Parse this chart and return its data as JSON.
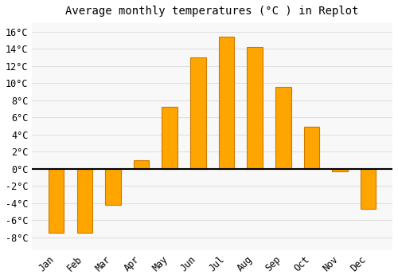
{
  "title": "Average monthly temperatures (°C ) in Replot",
  "months": [
    "Jan",
    "Feb",
    "Mar",
    "Apr",
    "May",
    "Jun",
    "Jul",
    "Aug",
    "Sep",
    "Oct",
    "Nov",
    "Dec"
  ],
  "temperatures": [
    -7.5,
    -7.5,
    -4.2,
    1.0,
    7.2,
    13.0,
    15.4,
    14.2,
    9.6,
    4.9,
    -0.3,
    -4.7
  ],
  "bar_color": "#FFA500",
  "bar_edgecolor": "#CC7A00",
  "background_color": "#ffffff",
  "plot_bg_color": "#f8f8f8",
  "grid_color": "#e0e0e0",
  "ylim": [
    -9.5,
    17
  ],
  "yticks": [
    -8,
    -6,
    -4,
    -2,
    0,
    2,
    4,
    6,
    8,
    10,
    12,
    14,
    16
  ],
  "title_fontsize": 10,
  "tick_fontsize": 8.5,
  "bar_width": 0.55
}
